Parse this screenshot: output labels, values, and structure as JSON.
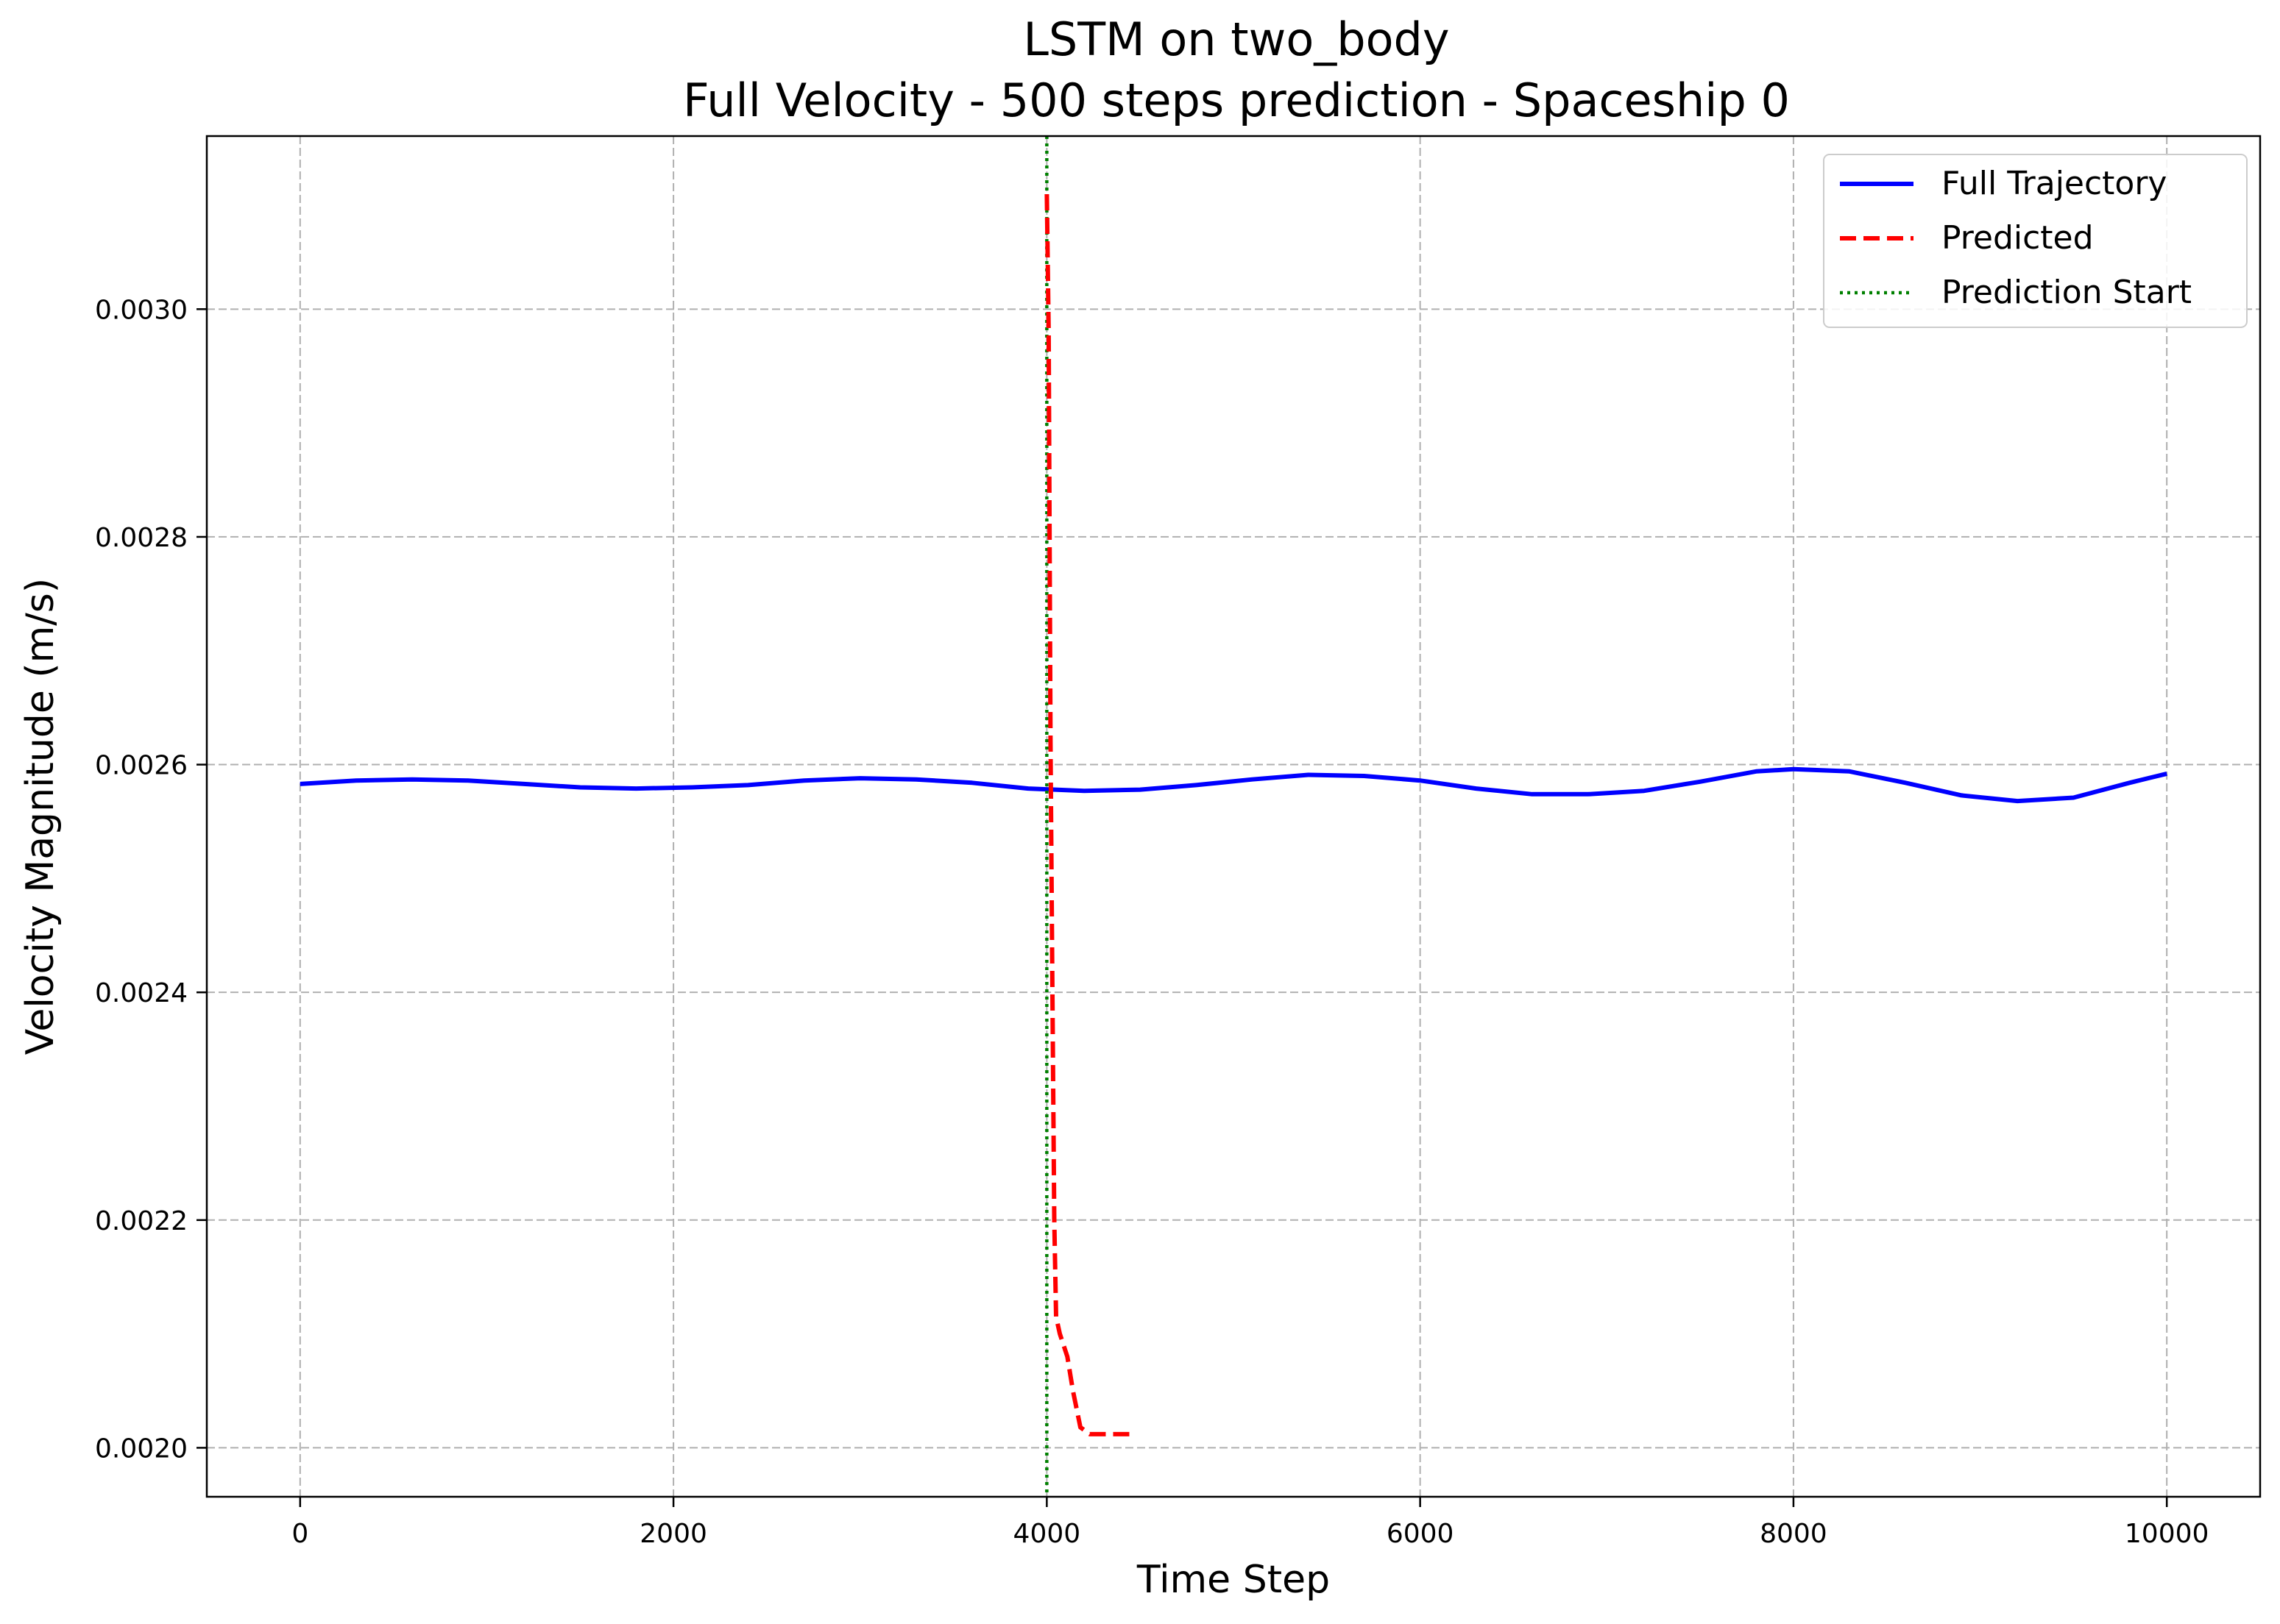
{
  "chart_data": {
    "type": "line",
    "title": "LSTM on two_body",
    "subtitle": "Full Velocity - 500 steps prediction - Spaceship 0",
    "xlabel": "Time Step",
    "ylabel": "Velocity Magnitude (m/s)",
    "xlim": [
      -500,
      10500
    ],
    "ylim": [
      0.001957,
      0.003152
    ],
    "x_ticks": [
      0,
      2000,
      4000,
      6000,
      8000,
      10000
    ],
    "x_tick_labels": [
      "0",
      "2000",
      "4000",
      "6000",
      "8000",
      "10000"
    ],
    "y_ticks": [
      0.002,
      0.0022,
      0.0024,
      0.0026,
      0.0028,
      0.003
    ],
    "y_tick_labels": [
      "0.0020",
      "0.0022",
      "0.0024",
      "0.0026",
      "0.0028",
      "0.0030"
    ],
    "grid": true,
    "legend_position": "top-right",
    "prediction_start": 4000,
    "series": [
      {
        "name": "Full Trajectory",
        "color": "#0000ff",
        "style": "solid",
        "points": [
          [
            0,
            0.002583
          ],
          [
            300,
            0.002586
          ],
          [
            600,
            0.002587
          ],
          [
            900,
            0.002586
          ],
          [
            1200,
            0.002583
          ],
          [
            1500,
            0.00258
          ],
          [
            1800,
            0.002579
          ],
          [
            2100,
            0.00258
          ],
          [
            2400,
            0.002582
          ],
          [
            2700,
            0.002586
          ],
          [
            3000,
            0.002588
          ],
          [
            3300,
            0.002587
          ],
          [
            3600,
            0.002584
          ],
          [
            3900,
            0.002579
          ],
          [
            4200,
            0.002577
          ],
          [
            4500,
            0.002578
          ],
          [
            4800,
            0.002582
          ],
          [
            5100,
            0.002587
          ],
          [
            5400,
            0.002591
          ],
          [
            5700,
            0.00259
          ],
          [
            6000,
            0.002586
          ],
          [
            6300,
            0.002579
          ],
          [
            6600,
            0.002574
          ],
          [
            6900,
            0.002574
          ],
          [
            7200,
            0.002577
          ],
          [
            7500,
            0.002585
          ],
          [
            7800,
            0.002594
          ],
          [
            8000,
            0.002596
          ],
          [
            8300,
            0.002594
          ],
          [
            8600,
            0.002584
          ],
          [
            8900,
            0.002573
          ],
          [
            9200,
            0.002568
          ],
          [
            9500,
            0.002571
          ],
          [
            9800,
            0.002584
          ],
          [
            10000,
            0.002592
          ]
        ]
      },
      {
        "name": "Predicted",
        "color": "#ff0000",
        "style": "dashed",
        "points": [
          [
            4000,
            0.003101
          ],
          [
            4010,
            0.00298
          ],
          [
            4020,
            0.00262
          ],
          [
            4030,
            0.0024
          ],
          [
            4040,
            0.0022
          ],
          [
            4050,
            0.002115
          ],
          [
            4070,
            0.0021
          ],
          [
            4110,
            0.00208
          ],
          [
            4140,
            0.00205
          ],
          [
            4180,
            0.002018
          ],
          [
            4230,
            0.002012
          ],
          [
            4300,
            0.002012
          ],
          [
            4450,
            0.002012
          ]
        ]
      },
      {
        "name": "Prediction Start",
        "color": "#008000",
        "style": "dotted"
      }
    ]
  }
}
